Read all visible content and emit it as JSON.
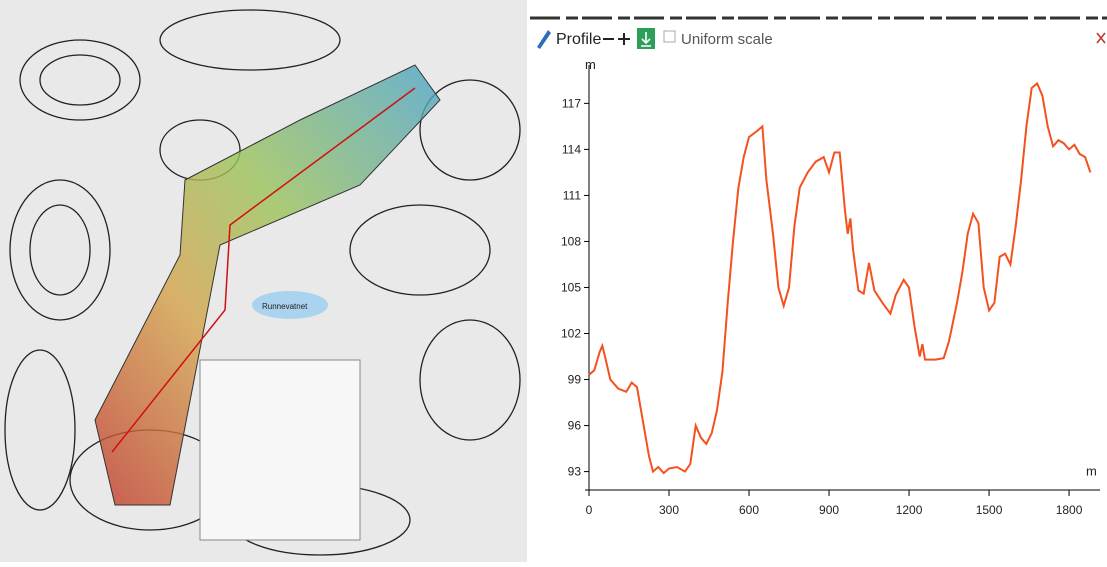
{
  "toolbar": {
    "title": "Profile",
    "option": "Uniform scale"
  },
  "map": {
    "labels": [
      "Runnevatnet"
    ]
  },
  "chart_data": {
    "type": "line",
    "y_label": "m",
    "x_label": "m",
    "x": [
      0,
      20,
      40,
      50,
      60,
      80,
      110,
      140,
      160,
      180,
      195,
      210,
      225,
      240,
      260,
      280,
      300,
      330,
      360,
      380,
      400,
      420,
      440,
      460,
      480,
      500,
      520,
      540,
      560,
      580,
      600,
      630,
      650,
      665,
      690,
      710,
      730,
      750,
      770,
      790,
      820,
      850,
      880,
      900,
      920,
      940,
      960,
      970,
      980,
      990,
      1010,
      1030,
      1050,
      1070,
      1100,
      1130,
      1150,
      1180,
      1200,
      1220,
      1240,
      1250,
      1260,
      1300,
      1330,
      1350,
      1380,
      1400,
      1420,
      1440,
      1460,
      1480,
      1500,
      1520,
      1540,
      1560,
      1580,
      1600,
      1620,
      1640,
      1660,
      1680,
      1700,
      1720,
      1740,
      1760,
      1780,
      1800,
      1820,
      1840,
      1860,
      1880
    ],
    "series": [
      {
        "name": "Profile",
        "color": "#f4511e",
        "values": [
          99.3,
          99.6,
          100.8,
          101.2,
          100.5,
          99.0,
          98.4,
          98.2,
          98.8,
          98.5,
          97.0,
          95.5,
          94.0,
          93.0,
          93.3,
          92.9,
          93.2,
          93.3,
          93.0,
          93.5,
          96.0,
          95.2,
          94.8,
          95.5,
          97.0,
          99.5,
          104,
          108,
          111.5,
          113.5,
          114.8,
          115.2,
          115.5,
          112,
          108.5,
          105,
          103.8,
          105,
          109,
          111.5,
          112.5,
          113.2,
          113.5,
          112.5,
          113.8,
          113.8,
          110,
          108.5,
          109.5,
          107.5,
          104.8,
          104.6,
          106.6,
          104.8,
          104.0,
          103.3,
          104.5,
          105.5,
          105,
          102.5,
          100.5,
          101.3,
          100.3,
          100.3,
          100.4,
          101.5,
          104,
          106,
          108.5,
          109.8,
          109.2,
          105,
          103.5,
          104,
          107,
          107.2,
          106.5,
          109,
          112,
          115.5,
          118,
          118.3,
          117.5,
          115.5,
          114.2,
          114.6,
          114.4,
          114,
          114.3,
          113.7,
          113.5,
          112.5
        ]
      }
    ],
    "xlim": [
      -15,
      1916
    ],
    "ylim": [
      91.8,
      119.5
    ],
    "xticks": [
      0,
      300,
      600,
      900,
      1200,
      1500,
      1800
    ],
    "yticks": [
      93,
      96,
      99,
      102,
      105,
      108,
      111,
      114,
      117
    ]
  }
}
